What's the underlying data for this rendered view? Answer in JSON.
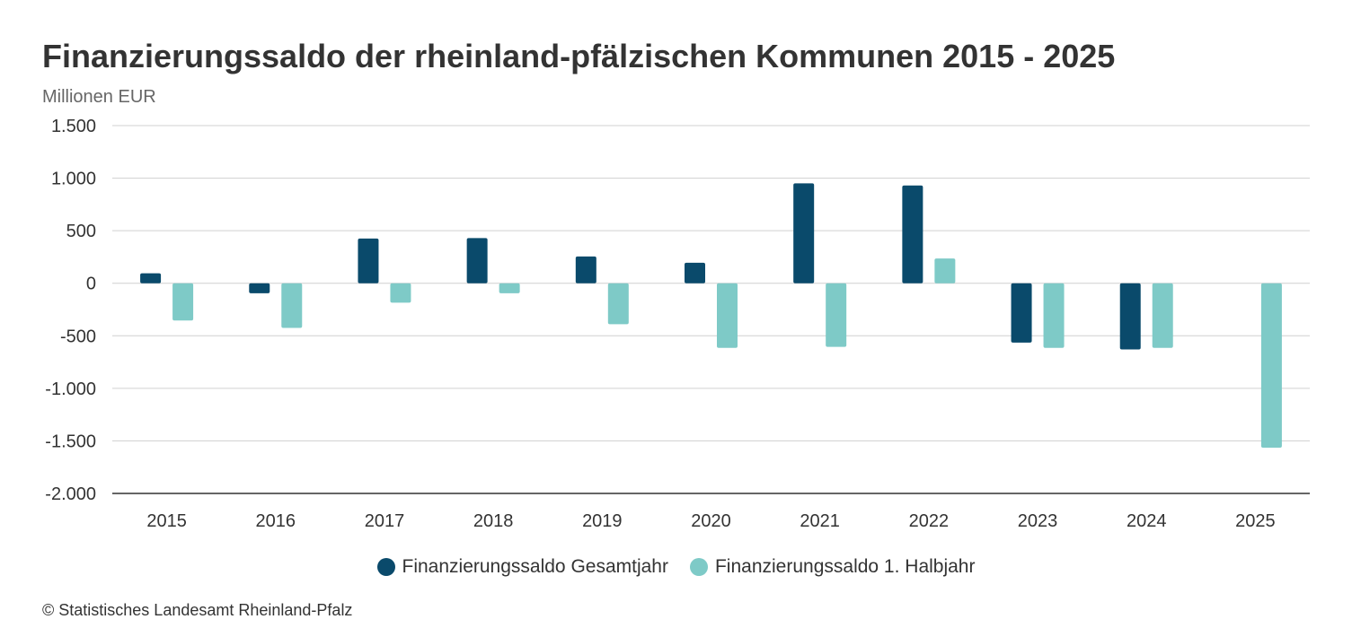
{
  "chart_data": {
    "type": "bar",
    "title": "Finanzierungssaldo der rheinland-pfälzischen Kommunen 2015 - 2025",
    "ylabel": "Millionen EUR",
    "xlabel": "",
    "ylim": [
      -2000,
      1500
    ],
    "yticks": [
      1500,
      1000,
      500,
      0,
      -500,
      -1000,
      -1500,
      -2000
    ],
    "ytick_labels": [
      "1.500",
      "1.000",
      "500",
      "0",
      "-500",
      "-1.000",
      "-1.500",
      "-2.000"
    ],
    "categories": [
      "2015",
      "2016",
      "2017",
      "2018",
      "2019",
      "2020",
      "2021",
      "2022",
      "2023",
      "2024",
      "2025"
    ],
    "series": [
      {
        "name": "Finanzierungssaldo Gesamtjahr",
        "color": "#0a4a6b",
        "values": [
          95,
          -95,
          425,
          430,
          255,
          195,
          950,
          930,
          -565,
          -630,
          null
        ]
      },
      {
        "name": "Finanzierungssaldo 1. Halbjahr",
        "color": "#7ecac7",
        "values": [
          -355,
          -425,
          -185,
          -95,
          -390,
          -615,
          -605,
          235,
          -615,
          -615,
          -1565
        ]
      }
    ],
    "grid": true,
    "legend_position": "bottom"
  },
  "source": "© Statistisches Landesamt Rheinland-Pfalz"
}
